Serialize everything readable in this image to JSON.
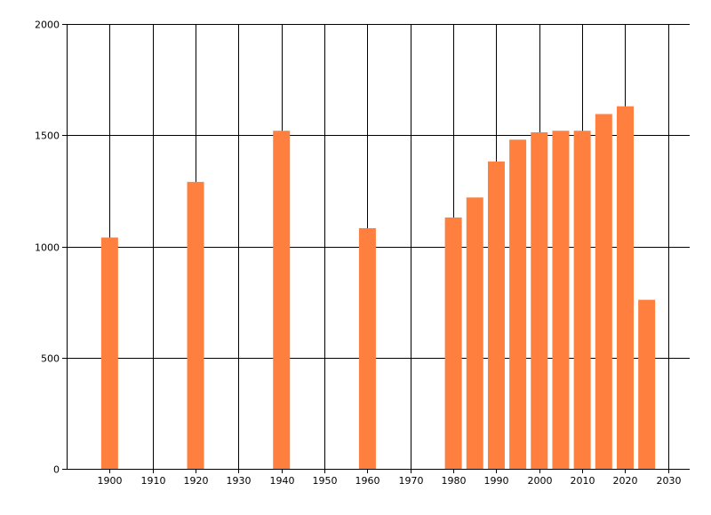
{
  "colors": {
    "bar": "#ff7f3f",
    "grid": "#000000",
    "axis": "#000000",
    "background": "#ffffff"
  },
  "chart_data": {
    "type": "bar",
    "title": "",
    "xlabel": "",
    "ylabel": "",
    "xlim": [
      1890,
      2035
    ],
    "ylim": [
      0,
      2000
    ],
    "x_ticks": [
      1900,
      1910,
      1920,
      1930,
      1940,
      1950,
      1960,
      1970,
      1980,
      1990,
      2000,
      2010,
      2020,
      2030
    ],
    "y_ticks": [
      0,
      500,
      1000,
      1500,
      2000
    ],
    "grid": true,
    "legend": "none",
    "series": [
      {
        "x": [
          1900,
          1920,
          1940,
          1960,
          1980,
          1985,
          1990,
          1995,
          2000,
          2005,
          2010,
          2015,
          2020,
          2025
        ],
        "values": [
          1040,
          1290,
          1520,
          1082,
          1130,
          1220,
          1382,
          1480,
          1513,
          1520,
          1520,
          1595,
          1630,
          760
        ]
      }
    ]
  }
}
